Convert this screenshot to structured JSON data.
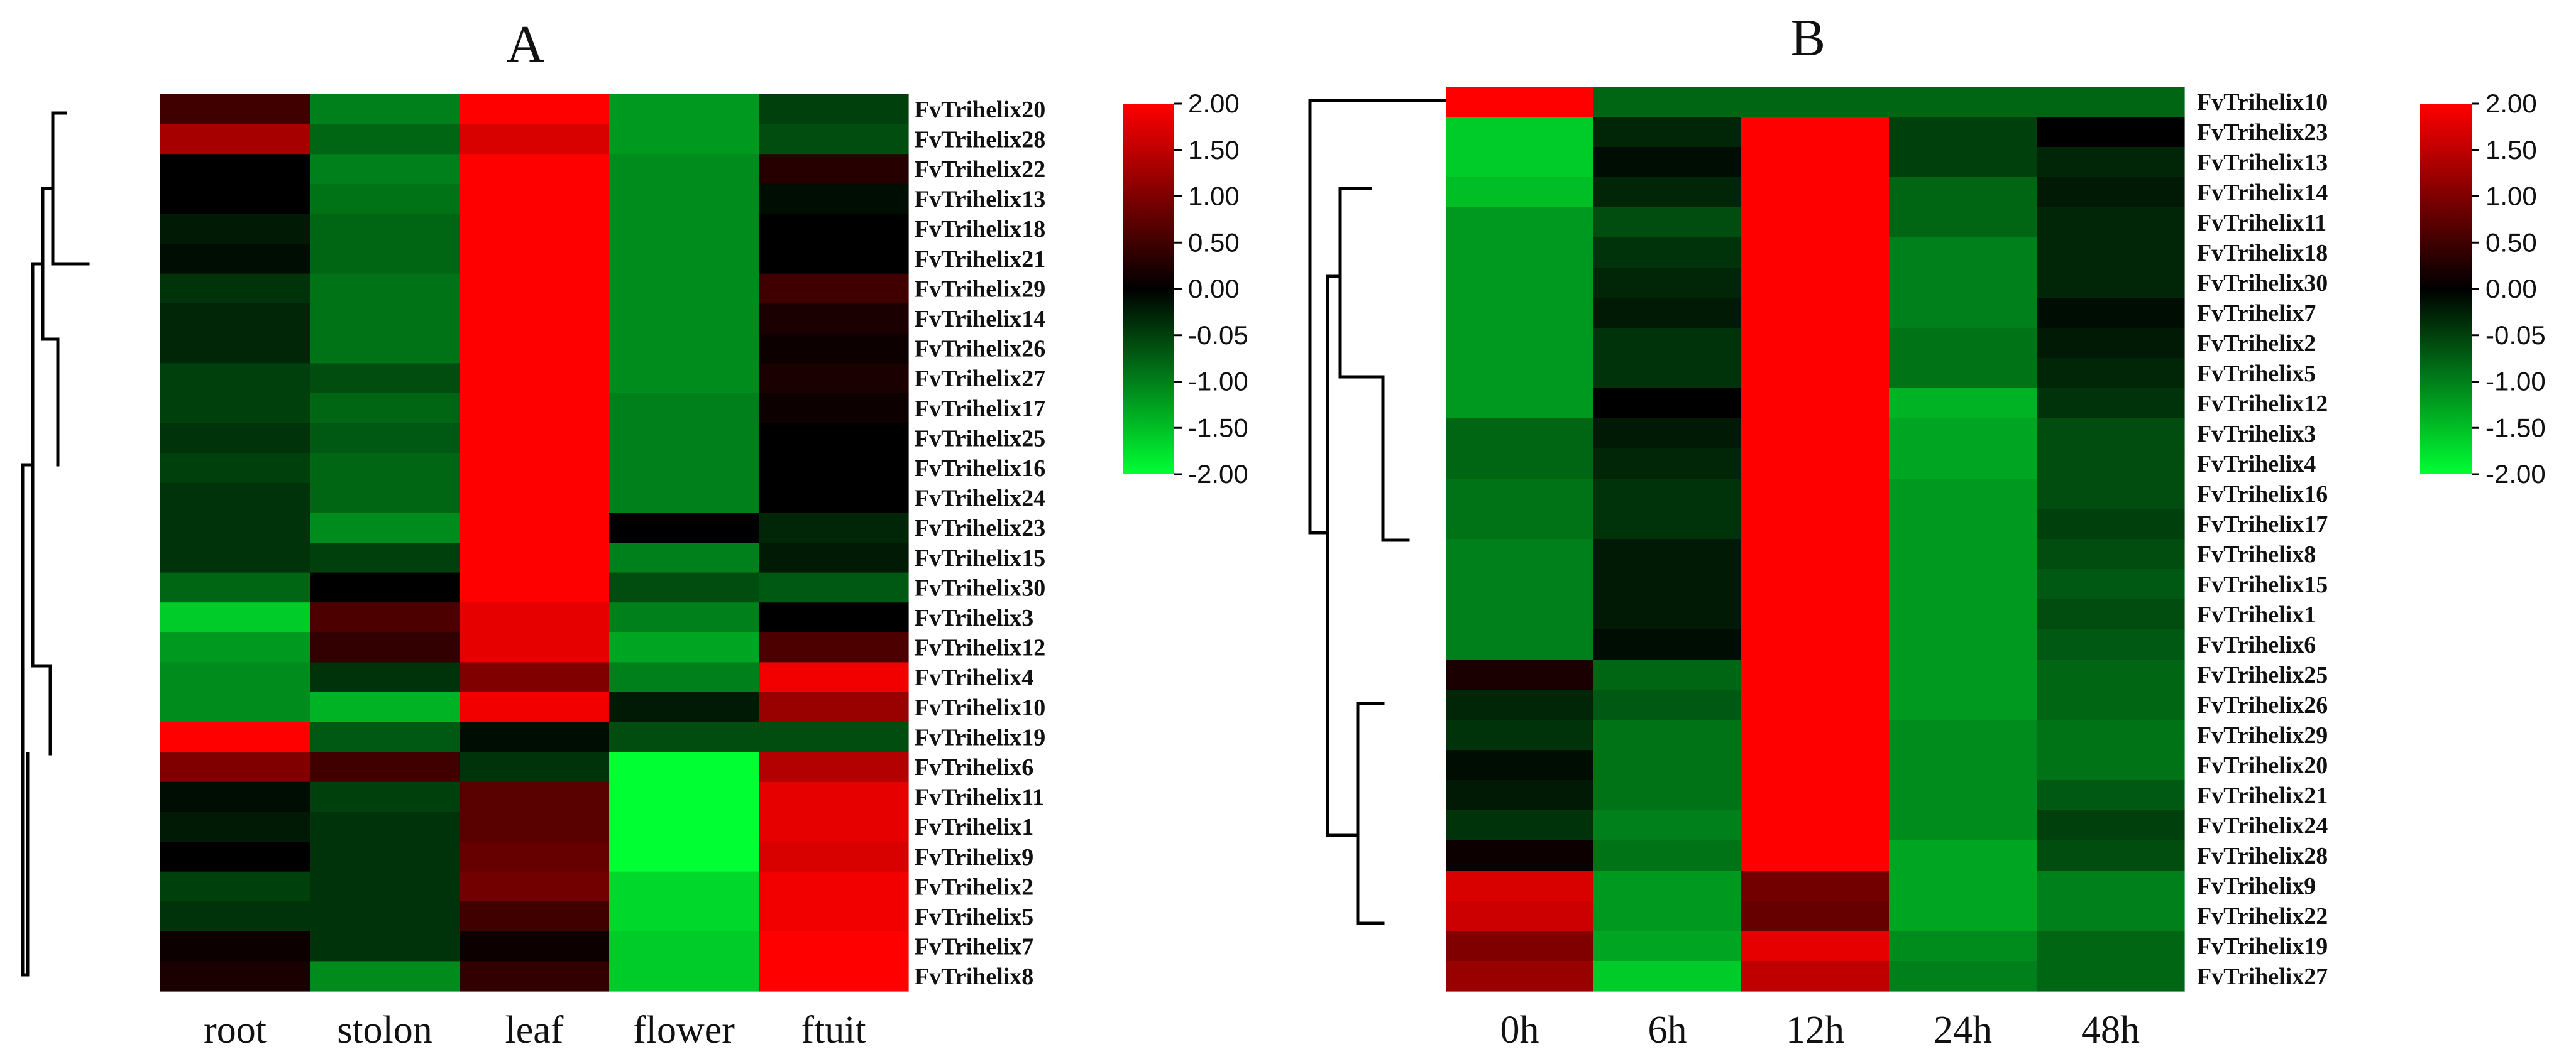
{
  "chart_data": [
    {
      "type": "heatmap",
      "title": "A",
      "columns": [
        "root",
        "stolon",
        "leaf",
        "flower",
        "ftuit"
      ],
      "rows": [
        "FvTrihelix20",
        "FvTrihelix28",
        "FvTrihelix22",
        "FvTrihelix13",
        "FvTrihelix18",
        "FvTrihelix21",
        "FvTrihelix29",
        "FvTrihelix14",
        "FvTrihelix26",
        "FvTrihelix27",
        "FvTrihelix17",
        "FvTrihelix25",
        "FvTrihelix16",
        "FvTrihelix24",
        "FvTrihelix23",
        "FvTrihelix15",
        "FvTrihelix30",
        "FvTrihelix3",
        "FvTrihelix12",
        "FvTrihelix4",
        "FvTrihelix10",
        "FvTrihelix19",
        "FvTrihelix6",
        "FvTrihelix11",
        "FvTrihelix1",
        "FvTrihelix9",
        "FvTrihelix2",
        "FvTrihelix5",
        "FvTrihelix7",
        "FvTrihelix8"
      ],
      "values": [
        [
          0.5,
          -1.0,
          2.0,
          -1.2,
          -0.5
        ],
        [
          1.3,
          -0.8,
          1.7,
          -1.2,
          -0.6
        ],
        [
          0.0,
          -1.0,
          2.0,
          -1.1,
          0.3
        ],
        [
          0.0,
          -0.9,
          2.0,
          -1.1,
          -0.1
        ],
        [
          -0.2,
          -0.8,
          2.0,
          -1.1,
          0.0
        ],
        [
          -0.1,
          -0.8,
          2.0,
          -1.1,
          0.0
        ],
        [
          -0.4,
          -0.9,
          2.0,
          -1.1,
          0.5
        ],
        [
          -0.3,
          -0.9,
          2.0,
          -1.1,
          0.2
        ],
        [
          -0.3,
          -0.9,
          2.0,
          -1.1,
          0.1
        ],
        [
          -0.5,
          -0.6,
          2.0,
          -1.1,
          0.2
        ],
        [
          -0.5,
          -0.8,
          2.0,
          -1.0,
          0.1
        ],
        [
          -0.4,
          -0.7,
          2.0,
          -1.0,
          0.0
        ],
        [
          -0.5,
          -0.8,
          2.0,
          -1.0,
          0.0
        ],
        [
          -0.4,
          -0.8,
          2.0,
          -1.0,
          0.0
        ],
        [
          -0.4,
          -1.1,
          2.0,
          0.0,
          -0.3
        ],
        [
          -0.4,
          -0.5,
          2.0,
          -1.0,
          -0.2
        ],
        [
          -0.8,
          0.0,
          2.0,
          -0.6,
          -0.7
        ],
        [
          -1.6,
          0.6,
          1.8,
          -1.0,
          0.0
        ],
        [
          -1.2,
          0.4,
          1.8,
          -1.3,
          0.6
        ],
        [
          -1.1,
          -0.4,
          1.0,
          -1.0,
          1.9
        ],
        [
          -1.1,
          -1.4,
          1.9,
          -0.2,
          1.2
        ],
        [
          2.0,
          -0.7,
          -0.1,
          -0.6,
          -0.6
        ],
        [
          1.0,
          0.5,
          -0.4,
          -2.0,
          1.4
        ],
        [
          -0.1,
          -0.5,
          0.7,
          -2.0,
          1.8
        ],
        [
          -0.2,
          -0.4,
          0.7,
          -2.0,
          1.8
        ],
        [
          0.0,
          -0.4,
          0.8,
          -2.0,
          1.7
        ],
        [
          -0.5,
          -0.4,
          0.9,
          -1.7,
          1.9
        ],
        [
          -0.4,
          -0.4,
          0.5,
          -1.7,
          1.9
        ],
        [
          0.1,
          -0.4,
          0.1,
          -1.6,
          2.0
        ],
        [
          0.2,
          -1.1,
          0.4,
          -1.6,
          2.0
        ]
      ],
      "color_scale": {
        "min": -2.0,
        "max": 2.0,
        "low_color": "#00ff33",
        "mid_color": "#000000",
        "high_color": "#ff0000",
        "ticks": [
          "2.00",
          "1.50",
          "1.00",
          "0.50",
          "0.00",
          "-0.05",
          "-1.00",
          "-1.50",
          "-2.00"
        ]
      }
    },
    {
      "type": "heatmap",
      "title": "B",
      "columns": [
        "0h",
        "6h",
        "12h",
        "24h",
        "48h"
      ],
      "rows": [
        "FvTrihelix10",
        "FvTrihelix23",
        "FvTrihelix13",
        "FvTrihelix14",
        "FvTrihelix11",
        "FvTrihelix18",
        "FvTrihelix30",
        "FvTrihelix7",
        "FvTrihelix2",
        "FvTrihelix5",
        "FvTrihelix12",
        "FvTrihelix3",
        "FvTrihelix4",
        "FvTrihelix16",
        "FvTrihelix17",
        "FvTrihelix8",
        "FvTrihelix15",
        "FvTrihelix1",
        "FvTrihelix6",
        "FvTrihelix25",
        "FvTrihelix26",
        "FvTrihelix29",
        "FvTrihelix20",
        "FvTrihelix21",
        "FvTrihelix24",
        "FvTrihelix28",
        "FvTrihelix9",
        "FvTrihelix22",
        "FvTrihelix19",
        "FvTrihelix27"
      ],
      "values": [
        [
          2.0,
          -0.8,
          -0.8,
          -0.8,
          -0.8
        ],
        [
          -1.6,
          -0.3,
          2.0,
          -0.5,
          0.0
        ],
        [
          -1.6,
          -0.1,
          2.0,
          -0.5,
          -0.3
        ],
        [
          -1.5,
          -0.3,
          2.0,
          -0.8,
          -0.2
        ],
        [
          -1.2,
          -0.6,
          2.0,
          -0.8,
          -0.3
        ],
        [
          -1.2,
          -0.4,
          2.0,
          -1.0,
          -0.3
        ],
        [
          -1.2,
          -0.3,
          2.0,
          -1.0,
          -0.3
        ],
        [
          -1.2,
          -0.2,
          2.0,
          -1.0,
          -0.1
        ],
        [
          -1.2,
          -0.4,
          2.0,
          -0.9,
          -0.2
        ],
        [
          -1.2,
          -0.4,
          2.0,
          -0.9,
          -0.3
        ],
        [
          -1.2,
          0.0,
          2.0,
          -1.4,
          -0.4
        ],
        [
          -0.8,
          -0.2,
          2.0,
          -1.3,
          -0.6
        ],
        [
          -0.8,
          -0.3,
          2.0,
          -1.3,
          -0.6
        ],
        [
          -0.9,
          -0.4,
          2.0,
          -1.2,
          -0.6
        ],
        [
          -0.9,
          -0.4,
          2.0,
          -1.2,
          -0.5
        ],
        [
          -1.0,
          -0.2,
          2.0,
          -1.2,
          -0.6
        ],
        [
          -1.0,
          -0.2,
          2.0,
          -1.2,
          -0.7
        ],
        [
          -1.0,
          -0.2,
          2.0,
          -1.2,
          -0.6
        ],
        [
          -1.0,
          -0.1,
          2.0,
          -1.2,
          -0.7
        ],
        [
          0.2,
          -0.8,
          2.0,
          -1.2,
          -0.8
        ],
        [
          -0.3,
          -0.7,
          2.0,
          -1.2,
          -0.8
        ],
        [
          -0.4,
          -0.9,
          2.0,
          -1.1,
          -0.9
        ],
        [
          -0.1,
          -0.9,
          2.0,
          -1.1,
          -0.9
        ],
        [
          -0.2,
          -0.9,
          2.0,
          -1.1,
          -0.7
        ],
        [
          -0.4,
          -1.0,
          2.0,
          -1.1,
          -0.5
        ],
        [
          0.1,
          -0.9,
          2.0,
          -1.3,
          -0.6
        ],
        [
          1.7,
          -1.2,
          0.9,
          -1.3,
          -1.0
        ],
        [
          1.6,
          -1.2,
          0.8,
          -1.3,
          -1.0
        ],
        [
          1.0,
          -1.3,
          1.8,
          -1.1,
          -0.8
        ],
        [
          1.2,
          -1.6,
          1.5,
          -1.0,
          -0.8
        ]
      ],
      "color_scale": {
        "min": -2.0,
        "max": 2.0,
        "low_color": "#00ff33",
        "mid_color": "#000000",
        "high_color": "#ff0000",
        "ticks": [
          "2.00",
          "1.50",
          "1.00",
          "0.50",
          "0.00",
          "-0.05",
          "-1.00",
          "-1.50",
          "-2.00"
        ]
      }
    }
  ]
}
